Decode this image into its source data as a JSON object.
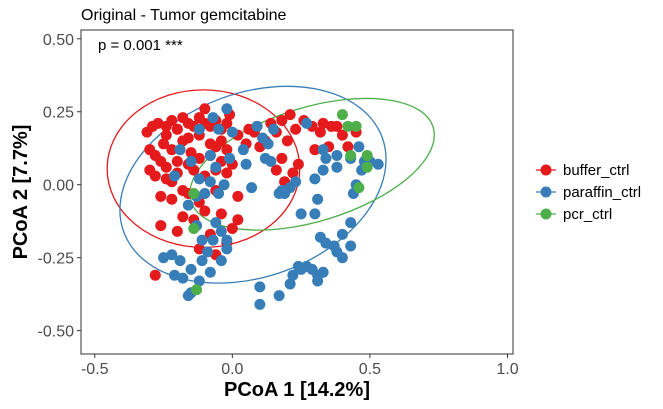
{
  "chart_data": {
    "type": "scatter",
    "title": "Original - Tumor gemcitabine",
    "xlabel": "PCoA 1 [14.2%]",
    "ylabel": "PCoA 2 [7.7%]",
    "xlim": [
      -0.55,
      1.02
    ],
    "ylim": [
      -0.58,
      0.53
    ],
    "xticks": [
      -0.5,
      0.0,
      0.5,
      1.0
    ],
    "xtick_labels": [
      "-0.5",
      "0.0",
      "0.5",
      "1.0"
    ],
    "yticks": [
      -0.5,
      -0.25,
      0.0,
      0.25,
      0.5
    ],
    "ytick_labels": [
      "-0.50",
      "-0.25",
      "0.00",
      "0.25",
      "0.50"
    ],
    "annotation": "p = 0.001 ***",
    "grid": false,
    "legend_position": "right",
    "series": [
      {
        "name": "buffer_ctrl",
        "color": "#E41A1C",
        "ellipse": {
          "cx": -0.105,
          "cy": 0.055,
          "rx": 0.35,
          "ry": 0.27,
          "angle": 0
        },
        "points": [
          [
            -0.31,
            0.18
          ],
          [
            -0.29,
            0.2
          ],
          [
            -0.27,
            0.21
          ],
          [
            -0.24,
            0.2
          ],
          [
            -0.22,
            0.22
          ],
          [
            -0.2,
            0.19
          ],
          [
            -0.18,
            0.23
          ],
          [
            -0.16,
            0.21
          ],
          [
            -0.14,
            0.2
          ],
          [
            -0.12,
            0.23
          ],
          [
            -0.1,
            0.21
          ],
          [
            -0.08,
            0.2
          ],
          [
            -0.06,
            0.22
          ],
          [
            -0.04,
            0.19
          ],
          [
            -0.02,
            0.21
          ],
          [
            -0.1,
            0.26
          ],
          [
            -0.25,
            0.14
          ],
          [
            -0.22,
            0.12
          ],
          [
            -0.18,
            0.15
          ],
          [
            -0.15,
            0.11
          ],
          [
            -0.3,
            0.12
          ],
          [
            -0.28,
            0.1
          ],
          [
            -0.26,
            0.08
          ],
          [
            -0.24,
            0.06
          ],
          [
            -0.2,
            0.08
          ],
          [
            -0.16,
            0.07
          ],
          [
            -0.12,
            0.09
          ],
          [
            -0.08,
            0.1
          ],
          [
            -0.04,
            0.08
          ],
          [
            -0.02,
            0.12
          ],
          [
            -0.3,
            0.05
          ],
          [
            -0.28,
            0.03
          ],
          [
            -0.24,
            0.02
          ],
          [
            -0.2,
            0.04
          ],
          [
            -0.18,
            -0.02
          ],
          [
            -0.14,
            0.05
          ],
          [
            -0.1,
            0.03
          ],
          [
            -0.06,
            0.05
          ],
          [
            -0.02,
            0.04
          ],
          [
            0.0,
            0.07
          ],
          [
            -0.26,
            -0.04
          ],
          [
            -0.22,
            -0.05
          ],
          [
            -0.16,
            -0.03
          ],
          [
            -0.12,
            -0.06
          ],
          [
            -0.06,
            -0.02
          ],
          [
            0.02,
            -0.04
          ],
          [
            -0.18,
            -0.11
          ],
          [
            -0.14,
            -0.12
          ],
          [
            -0.1,
            -0.09
          ],
          [
            -0.04,
            -0.1
          ],
          [
            0.02,
            -0.12
          ],
          [
            -0.26,
            -0.14
          ],
          [
            -0.2,
            -0.16
          ],
          [
            -0.08,
            -0.17
          ],
          [
            0.0,
            -0.15
          ],
          [
            -0.12,
            -0.22
          ],
          [
            -0.06,
            -0.24
          ],
          [
            -0.02,
            -0.2
          ],
          [
            -0.28,
            -0.31
          ],
          [
            0.06,
            0.19
          ],
          [
            0.02,
            0.17
          ],
          [
            0.05,
            0.14
          ],
          [
            0.09,
            0.2
          ],
          [
            0.12,
            0.15
          ],
          [
            0.14,
            0.21
          ],
          [
            0.16,
            0.18
          ],
          [
            0.18,
            0.22
          ],
          [
            0.2,
            0.15
          ],
          [
            0.21,
            0.24
          ],
          [
            0.23,
            0.19
          ],
          [
            0.18,
            0.09
          ],
          [
            0.16,
            0.05
          ],
          [
            0.19,
            0.01
          ],
          [
            0.2,
            -0.01
          ],
          [
            0.22,
            0.04
          ],
          [
            0.26,
            0.22
          ],
          [
            0.29,
            0.2
          ],
          [
            0.32,
            0.18
          ],
          [
            0.33,
            0.21
          ],
          [
            0.36,
            0.2
          ],
          [
            0.3,
            0.12
          ],
          [
            0.35,
            0.13
          ],
          [
            0.38,
            0.2
          ],
          [
            0.4,
            0.17
          ],
          [
            0.42,
            0.13
          ],
          [
            0.45,
            0.18
          ],
          [
            -0.08,
            0.14
          ],
          [
            -0.06,
            0.13
          ],
          [
            -0.16,
            0.16
          ],
          [
            -0.12,
            0.17
          ],
          [
            -0.22,
            0.01
          ],
          [
            0.1,
            0.13
          ],
          [
            0.24,
            0.07
          ],
          [
            -0.01,
            0.24
          ],
          [
            -0.24,
            0.17
          ],
          [
            -0.04,
            0.15
          ],
          [
            -0.2,
            0.19
          ],
          [
            0.08,
            0.18
          ]
        ]
      },
      {
        "name": "paraffin_ctrl",
        "color": "#377EB8",
        "ellipse": {
          "cx": 0.075,
          "cy": 0.0,
          "rx": 0.5,
          "ry": 0.315,
          "angle": -20
        },
        "points": [
          [
            -0.12,
            0.19
          ],
          [
            -0.07,
            0.23
          ],
          [
            -0.02,
            0.26
          ],
          [
            0.0,
            0.18
          ],
          [
            -0.05,
            0.19
          ],
          [
            0.09,
            0.2
          ],
          [
            0.11,
            0.16
          ],
          [
            0.13,
            0.14
          ],
          [
            0.15,
            0.19
          ],
          [
            0.04,
            0.12
          ],
          [
            -0.08,
            0.1
          ],
          [
            -0.01,
            0.09
          ],
          [
            0.05,
            0.07
          ],
          [
            -0.06,
            0.06
          ],
          [
            -0.19,
            0.12
          ],
          [
            -0.15,
            0.08
          ],
          [
            -0.21,
            0.03
          ],
          [
            -0.12,
            0.02
          ],
          [
            -0.08,
            0.01
          ],
          [
            -0.03,
            0.0
          ],
          [
            -0.05,
            -0.03
          ],
          [
            -0.16,
            -0.07
          ],
          [
            -0.13,
            -0.04
          ],
          [
            -0.1,
            -0.03
          ],
          [
            -0.06,
            -0.13
          ],
          [
            -0.13,
            -0.14
          ],
          [
            -0.11,
            -0.19
          ],
          [
            -0.04,
            -0.16
          ],
          [
            -0.02,
            -0.19
          ],
          [
            -0.07,
            -0.19
          ],
          [
            -0.02,
            -0.22
          ],
          [
            -0.09,
            -0.23
          ],
          [
            -0.11,
            -0.26
          ],
          [
            -0.15,
            -0.29
          ],
          [
            -0.19,
            -0.26
          ],
          [
            -0.22,
            -0.24
          ],
          [
            -0.25,
            -0.25
          ],
          [
            -0.21,
            -0.31
          ],
          [
            -0.18,
            -0.32
          ],
          [
            -0.15,
            -0.37
          ],
          [
            -0.16,
            -0.38
          ],
          [
            -0.12,
            -0.33
          ],
          [
            -0.04,
            -0.26
          ],
          [
            -0.08,
            -0.3
          ],
          [
            0.1,
            -0.35
          ],
          [
            0.1,
            -0.41
          ],
          [
            0.17,
            -0.38
          ],
          [
            0.21,
            -0.34
          ],
          [
            0.22,
            -0.31
          ],
          [
            0.24,
            -0.28
          ],
          [
            0.25,
            -0.29
          ],
          [
            0.27,
            -0.28
          ],
          [
            0.29,
            -0.29
          ],
          [
            0.31,
            -0.31
          ],
          [
            0.31,
            -0.33
          ],
          [
            0.33,
            -0.3
          ],
          [
            0.25,
            -0.1
          ],
          [
            0.3,
            -0.1
          ],
          [
            0.31,
            -0.05
          ],
          [
            0.33,
            0.05
          ],
          [
            0.32,
            -0.18
          ],
          [
            0.34,
            -0.2
          ],
          [
            0.37,
            -0.21
          ],
          [
            0.38,
            -0.23
          ],
          [
            0.4,
            -0.25
          ],
          [
            0.43,
            -0.21
          ],
          [
            0.4,
            -0.17
          ],
          [
            0.43,
            -0.13
          ],
          [
            0.44,
            -0.03
          ],
          [
            0.45,
            0.0
          ],
          [
            0.47,
            0.05
          ],
          [
            0.48,
            0.08
          ],
          [
            0.5,
            0.08
          ],
          [
            0.46,
            0.13
          ],
          [
            0.53,
            0.07
          ],
          [
            0.38,
            0.06
          ],
          [
            0.34,
            0.09
          ],
          [
            0.38,
            0.1
          ],
          [
            0.43,
            0.09
          ],
          [
            0.17,
            -0.03
          ],
          [
            0.19,
            -0.03
          ],
          [
            0.21,
            -0.01
          ],
          [
            0.23,
            0.01
          ],
          [
            0.12,
            0.09
          ],
          [
            0.07,
            -0.01
          ],
          [
            0.14,
            0.08
          ],
          [
            0.18,
            -0.02
          ],
          [
            0.27,
            0.21
          ],
          [
            0.33,
            0.12
          ],
          [
            0.3,
            0.02
          ]
        ]
      },
      {
        "name": "pcr_ctrl",
        "color": "#4DAF4A",
        "ellipse": {
          "cx": 0.29,
          "cy": 0.07,
          "rx": 0.46,
          "ry": 0.195,
          "angle": -17
        },
        "points": [
          [
            0.4,
            0.24
          ],
          [
            0.42,
            0.2
          ],
          [
            0.45,
            0.2
          ],
          [
            0.49,
            0.1
          ],
          [
            0.49,
            0.06
          ],
          [
            0.46,
            -0.01
          ],
          [
            0.43,
            0.1
          ],
          [
            -0.14,
            -0.03
          ],
          [
            -0.14,
            -0.15
          ],
          [
            -0.13,
            -0.36
          ]
        ]
      }
    ]
  }
}
